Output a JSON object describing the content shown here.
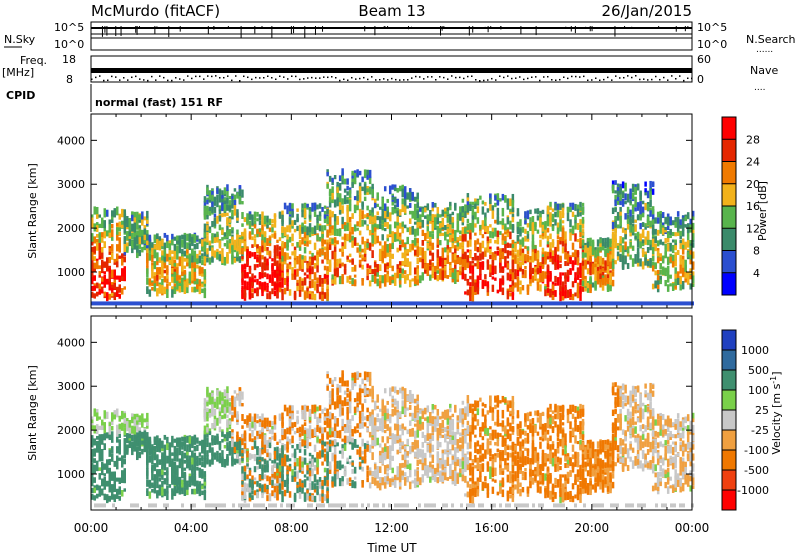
{
  "header": {
    "station": "McMurdo (fitACF)",
    "beam": "Beam 13",
    "date": "26/Jan/2015"
  },
  "strip_labels": {
    "nsky": "N.Sky",
    "freq": "Freq.",
    "mhz": "[MHz]",
    "cpid": "CPID",
    "nsearch": "N.Search",
    "nave": "Nave",
    "dots": "......",
    "nave_dots": "....",
    "left_ticks_top": [
      "10^5",
      "10^0"
    ],
    "left_ticks_freq": [
      "18",
      "8"
    ],
    "right_ticks_top": [
      "10^5",
      "10^0"
    ],
    "right_ticks_nave": [
      "60",
      "0"
    ],
    "cpid_text": "normal (fast) 151 RF"
  },
  "chart_data": [
    {
      "type": "heatmap",
      "name": "power",
      "ylabel": "Slant Range [km]",
      "yticks": [
        "1000",
        "2000",
        "3000",
        "4000"
      ],
      "ylim": [
        180,
        4600
      ],
      "xlim": [
        0,
        24
      ],
      "colorbar": {
        "label": "Power [dB]",
        "ticks": [
          "4",
          "8",
          "12",
          "16",
          "20",
          "24",
          "28"
        ],
        "colors": [
          "#0000ff",
          "#2b4fd0",
          "#3a8a6a",
          "#58b44c",
          "#f2b21b",
          "#f07a00",
          "#e52700",
          "#ff0000"
        ]
      }
    },
    {
      "type": "heatmap",
      "name": "velocity",
      "ylabel": "Slant Range [km]",
      "yticks": [
        "1000",
        "2000",
        "3000",
        "4000"
      ],
      "ylim": [
        180,
        4600
      ],
      "xlim": [
        0,
        24
      ],
      "colorbar": {
        "label": "Velocity [m s",
        "label_sup": "-1",
        "label_end": "]",
        "ticks": [
          "1000",
          "500",
          "100",
          "25",
          "-25",
          "-100",
          "-500",
          "-1000"
        ],
        "colors": [
          "#2040c0",
          "#2f6a9e",
          "#3f8f6f",
          "#7ad04a",
          "#c8c8c8",
          "#f0a040",
          "#f07800",
          "#f04010",
          "#ff0000"
        ]
      }
    }
  ],
  "x_axis": {
    "ticks": [
      "00:00",
      "04:00",
      "08:00",
      "12:00",
      "16:00",
      "20:00",
      "00:00"
    ],
    "label": "Time UT"
  }
}
